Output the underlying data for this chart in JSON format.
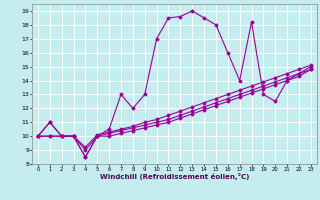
{
  "xlabel": "Windchill (Refroidissement éolien,°C)",
  "xlim": [
    -0.5,
    23.5
  ],
  "ylim": [
    8,
    19.5
  ],
  "xticks": [
    0,
    1,
    2,
    3,
    4,
    5,
    6,
    7,
    8,
    9,
    10,
    11,
    12,
    13,
    14,
    15,
    16,
    17,
    18,
    19,
    20,
    21,
    22,
    23
  ],
  "yticks": [
    8,
    9,
    10,
    11,
    12,
    13,
    14,
    15,
    16,
    17,
    18,
    19
  ],
  "bg_color": "#c5ecee",
  "line_color": "#990099",
  "grid_color": "#ffffff",
  "series": [
    {
      "x": [
        0,
        1,
        2,
        3,
        4,
        5,
        6,
        7,
        8,
        9,
        10,
        11,
        12,
        13,
        14,
        15,
        16,
        17,
        18,
        19,
        20,
        21,
        22,
        23
      ],
      "y": [
        10,
        11,
        10,
        10,
        8.5,
        10,
        10.5,
        13,
        12,
        13,
        17,
        18.5,
        18.6,
        19.0,
        18.5,
        18.0,
        16.0,
        14.0,
        18.2,
        13.0,
        12.5,
        14.0,
        14.5,
        15.0
      ]
    },
    {
      "x": [
        0,
        1,
        2,
        3,
        4,
        5,
        6,
        7,
        8,
        9,
        10,
        11,
        12,
        13,
        14,
        15,
        16,
        17,
        18,
        19,
        20,
        21,
        22,
        23
      ],
      "y": [
        10,
        11,
        10,
        10,
        8.5,
        10.0,
        10.0,
        10.2,
        10.4,
        10.6,
        10.8,
        11.0,
        11.3,
        11.6,
        11.9,
        12.2,
        12.5,
        12.8,
        13.1,
        13.4,
        13.7,
        14.0,
        14.3,
        14.8
      ]
    },
    {
      "x": [
        0,
        1,
        2,
        3,
        4,
        5,
        6,
        7,
        8,
        9,
        10,
        11,
        12,
        13,
        14,
        15,
        16,
        17,
        18,
        19,
        20,
        21,
        22,
        23
      ],
      "y": [
        10,
        10,
        10,
        10,
        9.0,
        10.0,
        10.2,
        10.4,
        10.6,
        10.8,
        11.0,
        11.2,
        11.5,
        11.8,
        12.1,
        12.4,
        12.7,
        13.0,
        13.3,
        13.6,
        13.9,
        14.2,
        14.5,
        14.8
      ]
    },
    {
      "x": [
        0,
        1,
        2,
        3,
        4,
        5,
        6,
        7,
        8,
        9,
        10,
        11,
        12,
        13,
        14,
        15,
        16,
        17,
        18,
        19,
        20,
        21,
        22,
        23
      ],
      "y": [
        10,
        10,
        10,
        10,
        9.2,
        10.1,
        10.3,
        10.5,
        10.7,
        11.0,
        11.2,
        11.5,
        11.8,
        12.1,
        12.4,
        12.7,
        13.0,
        13.3,
        13.6,
        13.9,
        14.2,
        14.5,
        14.8,
        15.1
      ]
    }
  ]
}
